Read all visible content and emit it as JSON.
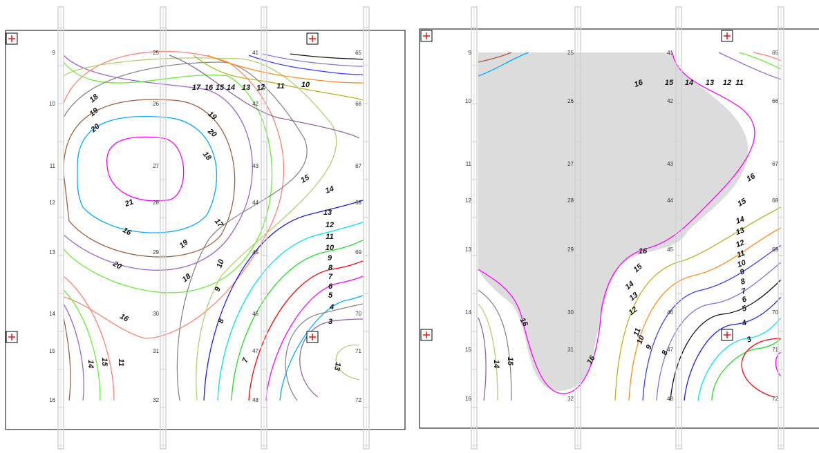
{
  "chart_data": [
    {
      "type": "contour",
      "title": "",
      "point_labels": [
        {
          "id": "9"
        },
        {
          "id": "10"
        },
        {
          "id": "11"
        },
        {
          "id": "12"
        },
        {
          "id": "13"
        },
        {
          "id": "14"
        },
        {
          "id": "15"
        },
        {
          "id": "16"
        },
        {
          "id": "25"
        },
        {
          "id": "26"
        },
        {
          "id": "27"
        },
        {
          "id": "28"
        },
        {
          "id": "29"
        },
        {
          "id": "30"
        },
        {
          "id": "31"
        },
        {
          "id": "32"
        },
        {
          "id": "41"
        },
        {
          "id": "42"
        },
        {
          "id": "43"
        },
        {
          "id": "44"
        },
        {
          "id": "45"
        },
        {
          "id": "46"
        },
        {
          "id": "47"
        },
        {
          "id": "48"
        },
        {
          "id": "65"
        },
        {
          "id": "66"
        },
        {
          "id": "67"
        },
        {
          "id": "68"
        },
        {
          "id": "69"
        },
        {
          "id": "70"
        },
        {
          "id": "71"
        },
        {
          "id": "72"
        }
      ],
      "contour_levels": [
        3,
        4,
        5,
        6,
        7,
        8,
        9,
        10,
        11,
        12,
        13,
        14,
        15,
        16,
        17,
        18,
        19,
        20,
        21
      ],
      "contour_labels": [
        "10",
        "11",
        "12",
        "13",
        "14",
        "15",
        "16",
        "17",
        "18",
        "19",
        "20",
        "21",
        "16",
        "19",
        "20",
        "18",
        "17",
        "18",
        "19",
        "20",
        "16",
        "15",
        "14",
        "13",
        "12",
        "11",
        "10",
        "9",
        "8",
        "7",
        "6",
        "5",
        "4",
        "3",
        "13",
        "14",
        "15",
        "11",
        "10",
        "9",
        "8",
        "7"
      ],
      "level_colors": {
        "3": "#ff0000",
        "4": "#22dd22",
        "5": "#00e5ee",
        "6": "#1a1aee",
        "7": "#111111",
        "8": "#8a6fd6",
        "9": "#3a3aff",
        "10": "#ff8c1a",
        "11": "#b5b520",
        "12": "#8a6a9a",
        "13": "#b0d070",
        "14": "#888888",
        "15": "#ff8070",
        "16": "#ff00ff",
        "17": "#00aaff",
        "18": "#a06040",
        "19": "#9966cc",
        "20": "#66ee33",
        "21": "#8888ff"
      }
    },
    {
      "type": "contour",
      "title": "",
      "point_labels": [
        {
          "id": "9"
        },
        {
          "id": "10"
        },
        {
          "id": "11"
        },
        {
          "id": "12"
        },
        {
          "id": "13"
        },
        {
          "id": "14"
        },
        {
          "id": "15"
        },
        {
          "id": "16"
        },
        {
          "id": "25"
        },
        {
          "id": "26"
        },
        {
          "id": "27"
        },
        {
          "id": "28"
        },
        {
          "id": "29"
        },
        {
          "id": "30"
        },
        {
          "id": "31"
        },
        {
          "id": "32"
        },
        {
          "id": "41"
        },
        {
          "id": "42"
        },
        {
          "id": "43"
        },
        {
          "id": "44"
        },
        {
          "id": "45"
        },
        {
          "id": "46"
        },
        {
          "id": "47"
        },
        {
          "id": "48"
        },
        {
          "id": "65"
        },
        {
          "id": "66"
        },
        {
          "id": "67"
        },
        {
          "id": "68"
        },
        {
          "id": "69"
        },
        {
          "id": "70"
        },
        {
          "id": "71"
        },
        {
          "id": "72"
        }
      ],
      "masked_region": "values above 16 shown as grey fill",
      "contour_labels": [
        "16",
        "15",
        "14",
        "13",
        "12",
        "11",
        "16",
        "15",
        "14",
        "13",
        "12",
        "11",
        "10",
        "9",
        "8",
        "7",
        "6",
        "5",
        "4",
        "3",
        "16",
        "15",
        "14",
        "13",
        "12",
        "11",
        "10",
        "9",
        "8",
        "16",
        "16",
        "14",
        "15"
      ],
      "mask_color": "#dcdcdc"
    }
  ]
}
